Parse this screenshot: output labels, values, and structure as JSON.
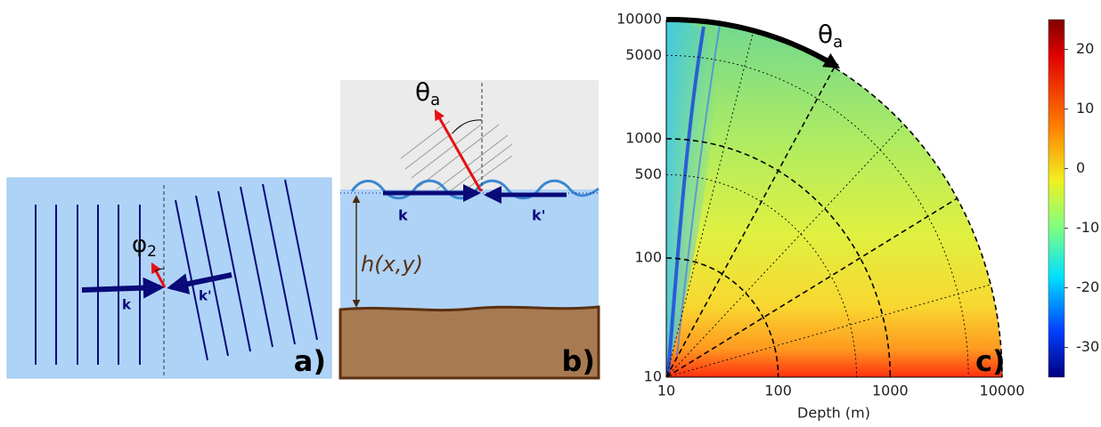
{
  "panel_a": {
    "label": "a)",
    "phi": "φ",
    "phi_sub": "2",
    "k": "k",
    "k_prime": "k'"
  },
  "panel_b": {
    "label": "b)",
    "theta": "θ",
    "theta_sub": "a",
    "k": "k",
    "k_prime": "k'",
    "h": "h(x,y)"
  },
  "panel_c": {
    "label": "c)",
    "theta": "θ",
    "theta_sub": "a",
    "x_label": "Depth (m)",
    "radius_range": [
      10,
      10000
    ],
    "xticks": [
      10,
      100,
      1000,
      10000
    ],
    "yticks": [
      10,
      100,
      500,
      1000,
      5000,
      10000
    ],
    "colorbar_range": [
      -35,
      25
    ],
    "colorbar_ticks": [
      20,
      10,
      0,
      -10,
      -20,
      -30
    ]
  }
}
